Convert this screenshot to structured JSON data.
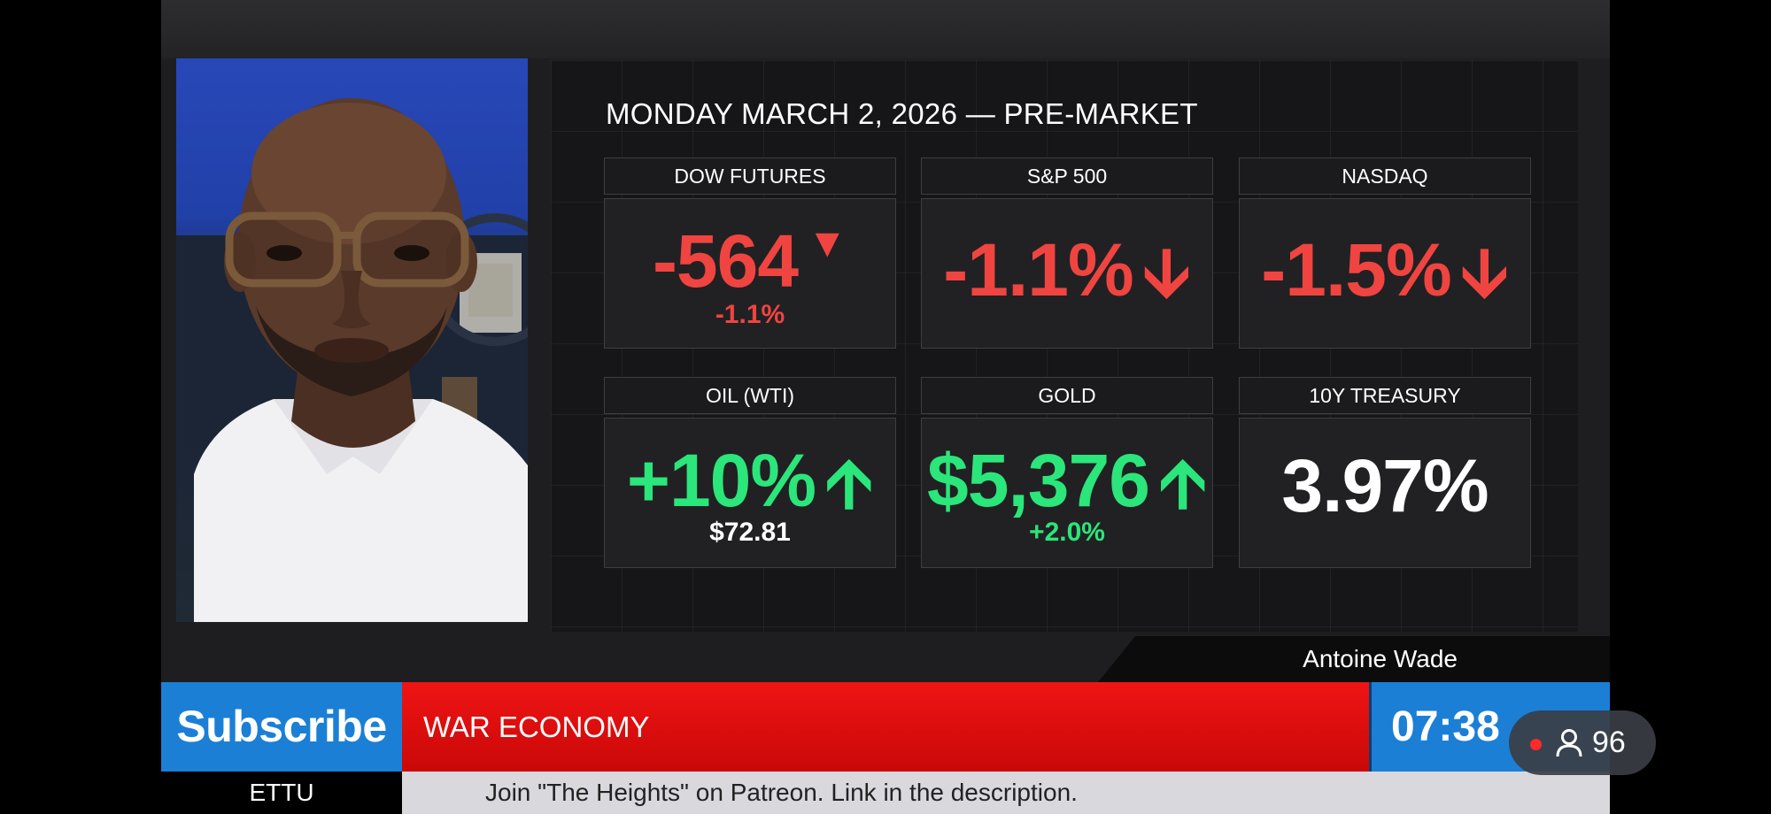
{
  "board": {
    "headline": "MONDAY MARCH 2, 2026 — PRE-MARKET",
    "tiles": [
      {
        "label": "DOW FUTURES",
        "value": "-564",
        "sub": "-1.1%",
        "direction": "down",
        "arrow_style": "triangle",
        "color": "#f04440"
      },
      {
        "label": "S&P 500",
        "value": "-1.1%",
        "sub": "",
        "direction": "down",
        "arrow_style": "arrow",
        "color": "#f04440"
      },
      {
        "label": "NASDAQ",
        "value": "-1.5%",
        "sub": "",
        "direction": "down",
        "arrow_style": "arrow",
        "color": "#f04440"
      },
      {
        "label": "OIL (WTI)",
        "value": "+10%",
        "sub": "$72.81",
        "direction": "up",
        "arrow_style": "arrow",
        "color": "#2be67a"
      },
      {
        "label": "GOLD",
        "value": "$5,376",
        "sub": "+2.0%",
        "direction": "up",
        "arrow_style": "arrow",
        "color": "#2be67a"
      },
      {
        "label": "10Y TREASURY",
        "value": "3.97%",
        "sub": "",
        "direction": "none",
        "arrow_style": "",
        "color": "#ffffff"
      }
    ]
  },
  "lower_third": {
    "presenter_name": "Antoine Wade",
    "subscribe_label": "Subscribe",
    "topic": "WAR ECONOMY",
    "clock": "07:38",
    "channel": "ETTU",
    "ticker": "Join \"The Heights\" on Patreon.  Link in the description."
  },
  "overlay": {
    "viewer_count": "96",
    "live_dot_color": "#ff2a2a",
    "icon": "person-icon"
  },
  "colors": {
    "accent_blue": "#1b7fd6",
    "topic_red": "#e41010",
    "down_red": "#f04440",
    "up_green": "#2be67a"
  }
}
